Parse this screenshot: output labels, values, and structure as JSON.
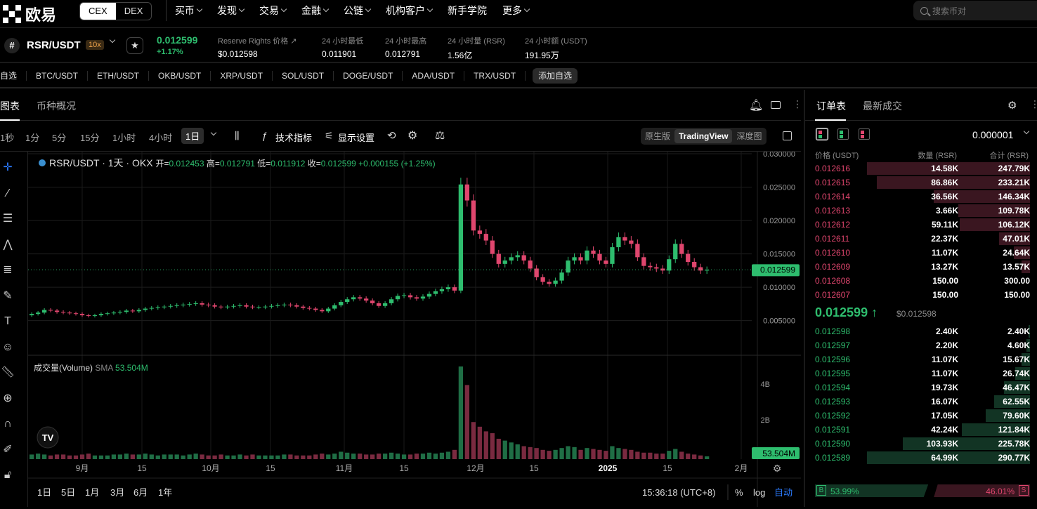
{
  "nav": {
    "logo": "欧易",
    "cex": "CEX",
    "dex": "DEX",
    "menu": [
      "买币",
      "发现",
      "交易",
      "金融",
      "公链",
      "机构客户",
      "新手学院",
      "更多"
    ],
    "search_placeholder": "搜索币对"
  },
  "ticker": {
    "pair": "RSR/USDT",
    "leverage": "10x",
    "last": "0.012599",
    "change": "+1.17%",
    "stats": [
      {
        "k": "Reserve Rights 价格",
        "v": "$0.012598"
      },
      {
        "k": "24 小时最低",
        "v": "0.011901"
      },
      {
        "k": "24 小时最高",
        "v": "0.012791"
      },
      {
        "k": "24 小时量 (RSR)",
        "v": "1.56亿"
      },
      {
        "k": "24 小时额 (USDT)",
        "v": "191.95万"
      }
    ]
  },
  "favorites": {
    "label": "自选",
    "items": [
      "BTC/USDT",
      "ETH/USDT",
      "OKB/USDT",
      "XRP/USDT",
      "SOL/USDT",
      "DOGE/USDT",
      "ADA/USDT",
      "TRX/USDT"
    ],
    "add": "添加自选"
  },
  "chart_tabs": [
    "图表",
    "币种概况"
  ],
  "timeframes": [
    "1秒",
    "1分",
    "5分",
    "15分",
    "1小时",
    "4小时",
    "1日"
  ],
  "tools": {
    "indicators": "技术指标",
    "display": "显示设置"
  },
  "views": [
    "原生版",
    "TradingView",
    "深度图"
  ],
  "legend": {
    "title": "RSR/USDT · 1天 · OKX",
    "o_label": "开=",
    "o": "0.012453",
    "h_label": "高=",
    "h": "0.012791",
    "l_label": "低=",
    "l": "0.011912",
    "c_label": "收=",
    "c": "0.012599",
    "chg": "+0.000155 (+1.25%)"
  },
  "volume_legend": {
    "label": "成交量(Volume)",
    "sma": "SMA",
    "value": "53.504M"
  },
  "price_axis": [
    "0.030000",
    "0.025000",
    "0.020000",
    "0.015000",
    "0.010000",
    "0.005000"
  ],
  "price_tag": "0.012599",
  "volume_axis": [
    "4B",
    "2B"
  ],
  "volume_tag": "53.504M",
  "time_axis": [
    "9月",
    "15",
    "10月",
    "15",
    "11月",
    "15",
    "12月",
    "15",
    "2025",
    "15",
    "2月"
  ],
  "ranges": [
    "1日",
    "5日",
    "1月",
    "3月",
    "6月",
    "1年"
  ],
  "clock": "15:36:18 (UTC+8)",
  "scale_opts": [
    "%",
    "log",
    "自动"
  ],
  "tv_logo": "TV",
  "colors": {
    "up": "#2ebd6e",
    "down": "#e0466e",
    "accent": "#2b7bff"
  },
  "chart_data": {
    "type": "candlestick",
    "series_close": [
      0.006,
      0.0062,
      0.0066,
      0.0065,
      0.0063,
      0.0062,
      0.0061,
      0.006,
      0.0058,
      0.0057,
      0.0058,
      0.006,
      0.0061,
      0.0062,
      0.0063,
      0.0065,
      0.0064,
      0.0066,
      0.0068,
      0.0069,
      0.007,
      0.0071,
      0.0072,
      0.0073,
      0.0074,
      0.0075,
      0.0076,
      0.0074,
      0.0073,
      0.0071,
      0.007,
      0.0071,
      0.0072,
      0.0073,
      0.0071,
      0.007,
      0.007,
      0.0071,
      0.0072,
      0.0073,
      0.0074,
      0.0073,
      0.0071,
      0.0069,
      0.0068,
      0.0066,
      0.0064,
      0.0068,
      0.0073,
      0.0078,
      0.0082,
      0.0085,
      0.0083,
      0.008,
      0.0076,
      0.0072,
      0.0076,
      0.0082,
      0.0087,
      0.0088,
      0.0085,
      0.0083,
      0.0086,
      0.009,
      0.0094,
      0.0097,
      0.01,
      0.0095,
      0.0254,
      0.023,
      0.0185,
      0.018,
      0.017,
      0.015,
      0.0135,
      0.014,
      0.0145,
      0.0148,
      0.014,
      0.0128,
      0.0115,
      0.0108,
      0.0105,
      0.011,
      0.0122,
      0.014,
      0.0145,
      0.014,
      0.0155,
      0.015,
      0.014,
      0.0135,
      0.016,
      0.0175,
      0.017,
      0.0165,
      0.0145,
      0.0132,
      0.013,
      0.0128,
      0.0125,
      0.0142,
      0.0165,
      0.015,
      0.0138,
      0.013,
      0.0125,
      0.0126
    ],
    "volume_note": "heights relative, spike at Dec",
    "volume_rel": [
      0.05,
      0.06,
      0.05,
      0.04,
      0.05,
      0.05,
      0.04,
      0.04,
      0.05,
      0.06,
      0.04,
      0.04,
      0.04,
      0.05,
      0.05,
      0.06,
      0.05,
      0.05,
      0.06,
      0.05,
      0.04,
      0.05,
      0.05,
      0.05,
      0.04,
      0.05,
      0.06,
      0.05,
      0.04,
      0.04,
      0.05,
      0.04,
      0.04,
      0.05,
      0.04,
      0.05,
      0.04,
      0.04,
      0.04,
      0.04,
      0.05,
      0.05,
      0.04,
      0.04,
      0.04,
      0.05,
      0.06,
      0.05,
      0.06,
      0.08,
      0.07,
      0.06,
      0.06,
      0.05,
      0.05,
      0.06,
      0.06,
      0.07,
      0.06,
      0.05,
      0.05,
      0.06,
      0.06,
      0.07,
      0.06,
      0.07,
      0.08,
      0.1,
      1.0,
      0.8,
      0.4,
      0.35,
      0.3,
      0.28,
      0.22,
      0.2,
      0.18,
      0.16,
      0.14,
      0.13,
      0.12,
      0.1,
      0.09,
      0.1,
      0.12,
      0.14,
      0.13,
      0.1,
      0.12,
      0.11,
      0.1,
      0.09,
      0.14,
      0.12,
      0.11,
      0.1,
      0.08,
      0.07,
      0.07,
      0.06,
      0.06,
      0.09,
      0.11,
      0.08,
      0.06,
      0.05,
      0.04,
      0.03
    ],
    "ylim": [
      0.0,
      0.03
    ]
  },
  "orderbook": {
    "tabs": [
      "订单表",
      "最新成交"
    ],
    "tick": "0.000001",
    "headers": [
      "价格 (USDT)",
      "数量 (RSR)",
      "合计 (RSR)"
    ],
    "asks": [
      {
        "p": "0.012616",
        "s": "14.58K",
        "t": "247.79K",
        "d": 1.0
      },
      {
        "p": "0.012615",
        "s": "86.86K",
        "t": "233.21K",
        "d": 0.94
      },
      {
        "p": "0.012614",
        "s": "36.56K",
        "t": "146.34K",
        "d": 0.59
      },
      {
        "p": "0.012613",
        "s": "3.66K",
        "t": "109.78K",
        "d": 0.44
      },
      {
        "p": "0.012612",
        "s": "59.11K",
        "t": "106.12K",
        "d": 0.43
      },
      {
        "p": "0.012611",
        "s": "22.37K",
        "t": "47.01K",
        "d": 0.19
      },
      {
        "p": "0.012610",
        "s": "11.07K",
        "t": "24.64K",
        "d": 0.1
      },
      {
        "p": "0.012609",
        "s": "13.27K",
        "t": "13.57K",
        "d": 0.05
      },
      {
        "p": "0.012608",
        "s": "150.00",
        "t": "300.00",
        "d": 0.0
      },
      {
        "p": "0.012607",
        "s": "150.00",
        "t": "150.00",
        "d": 0.0
      }
    ],
    "mid": "0.012599",
    "mid_arrow": "↑",
    "mid_usd": "$0.012598",
    "bids": [
      {
        "p": "0.012598",
        "s": "2.40K",
        "t": "2.40K",
        "d": 0.01
      },
      {
        "p": "0.012597",
        "s": "2.20K",
        "t": "4.60K",
        "d": 0.02
      },
      {
        "p": "0.012596",
        "s": "11.07K",
        "t": "15.67K",
        "d": 0.05
      },
      {
        "p": "0.012595",
        "s": "11.07K",
        "t": "26.74K",
        "d": 0.09
      },
      {
        "p": "0.012594",
        "s": "19.73K",
        "t": "46.47K",
        "d": 0.16
      },
      {
        "p": "0.012593",
        "s": "16.07K",
        "t": "62.55K",
        "d": 0.22
      },
      {
        "p": "0.012592",
        "s": "17.05K",
        "t": "79.60K",
        "d": 0.27
      },
      {
        "p": "0.012591",
        "s": "42.24K",
        "t": "121.84K",
        "d": 0.42
      },
      {
        "p": "0.012590",
        "s": "103.93K",
        "t": "225.78K",
        "d": 0.78
      },
      {
        "p": "0.012589",
        "s": "64.99K",
        "t": "290.77K",
        "d": 1.0
      }
    ],
    "buy_label": "B",
    "buy_pct": "53.99%",
    "buy_ratio": 0.5399,
    "sell_label": "S",
    "sell_pct": "46.01%"
  }
}
